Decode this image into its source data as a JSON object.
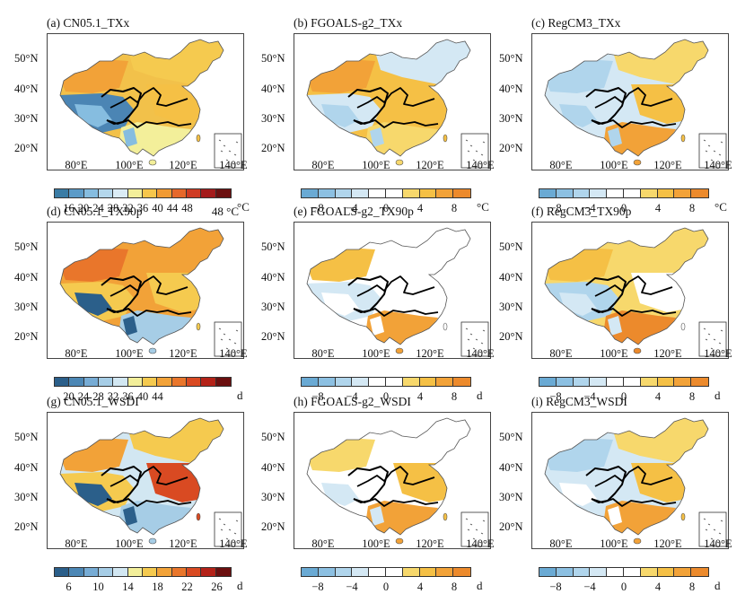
{
  "longitude_ticks": [
    "80°E",
    "100°E",
    "120°E",
    "140°E"
  ],
  "latitude_ticks": [
    "50°N",
    "40°N",
    "30°N",
    "20°N"
  ],
  "extra_label": "48 °C",
  "colorbars": {
    "abs_txx": {
      "colors": [
        "#3a7ca5",
        "#5b9bc8",
        "#86bde0",
        "#b4d7ec",
        "#dbecf5",
        "#f3ef9a",
        "#f6c64c",
        "#f19a33",
        "#e6682b",
        "#cf3b23",
        "#a41b1b",
        "#6b0f0f"
      ],
      "labels": [
        "16",
        "20",
        "24",
        "28",
        "32",
        "36",
        "40",
        "44",
        "48"
      ],
      "unit": "°C"
    },
    "abs_tx90p": {
      "colors": [
        "#2b5f8a",
        "#4c87b5",
        "#77acd5",
        "#a6cde6",
        "#d2e7f2",
        "#f3ef9a",
        "#f5ca4f",
        "#f2a238",
        "#e9762b",
        "#d94a22",
        "#b42218",
        "#6b0f0f"
      ],
      "labels": [
        "20",
        "24",
        "28",
        "32",
        "36",
        "40",
        "44"
      ],
      "unit": "d"
    },
    "abs_wsdi": {
      "colors": [
        "#2b5f8a",
        "#4c87b5",
        "#77acd5",
        "#a6cde6",
        "#d2e7f2",
        "#f3ef9a",
        "#f5ca4f",
        "#f2a238",
        "#e9762b",
        "#d94a22",
        "#b42218",
        "#6b0f0f"
      ],
      "labels": [
        "6",
        "10",
        "14",
        "18",
        "22",
        "26"
      ],
      "unit": "d"
    },
    "diff_c": {
      "colors": [
        "#6aaad4",
        "#8cc0e2",
        "#b0d5ec",
        "#d4e8f4",
        "#ffffff",
        "#ffffff",
        "#f7d86c",
        "#f5c045",
        "#f2a238",
        "#ec8a2c"
      ],
      "labels": [
        "−8",
        "−4",
        "0",
        "4",
        "8"
      ],
      "unit": "°C"
    },
    "diff_d": {
      "colors": [
        "#6aaad4",
        "#8cc0e2",
        "#b0d5ec",
        "#d4e8f4",
        "#ffffff",
        "#ffffff",
        "#f7d86c",
        "#f5c045",
        "#f2a238",
        "#ec8a2c"
      ],
      "labels": [
        "−8",
        "−4",
        "0",
        "4",
        "8"
      ],
      "unit": "d"
    }
  },
  "panels": [
    {
      "title": "(a)  CN05.1_TXx",
      "cbar": "abs_txx",
      "palette": {
        "base": "#f2c14a",
        "west": "#f2a238",
        "tibet": "#4b85b4",
        "tibet2": "#86bde0",
        "east": "#f5c045",
        "south": "#f3ef9a",
        "north": "#f5ca4f"
      }
    },
    {
      "title": "(b)  FGOALS-g2_TXx",
      "cbar": "diff_c",
      "palette": {
        "base": "#f5c045",
        "west": "#f2a238",
        "tibet": "#d4e8f4",
        "tibet2": "#b0d5ec",
        "east": "#f5c045",
        "south": "#f7d86c",
        "north": "#d4e8f4"
      }
    },
    {
      "title": "(c)  RegCM3_TXx",
      "cbar": "diff_c",
      "palette": {
        "base": "#d4e8f4",
        "west": "#b0d5ec",
        "tibet": "#d4e8f4",
        "tibet2": "#b0d5ec",
        "east": "#f5c045",
        "south": "#f2a238",
        "north": "#f7d86c"
      }
    },
    {
      "title": "(d)  CN05.1_TX90p",
      "cbar": "abs_tx90p",
      "palette": {
        "base": "#f2a238",
        "west": "#e9762b",
        "tibet": "#f5ca4f",
        "tibet2": "#2b5f8a",
        "east": "#f5ca4f",
        "south": "#a6cde6",
        "north": "#f2a238"
      }
    },
    {
      "title": "(e)  FGOALS-g2_TX90p",
      "cbar": "diff_d",
      "palette": {
        "base": "#ffffff",
        "west": "#f5c045",
        "tibet": "#d4e8f4",
        "tibet2": "#ffffff",
        "east": "#ffffff",
        "south": "#f2a238",
        "north": "#ffffff"
      }
    },
    {
      "title": "(f)  RegCM3_TX90p",
      "cbar": "diff_d",
      "palette": {
        "base": "#f7d86c",
        "west": "#f5c045",
        "tibet": "#b0d5ec",
        "tibet2": "#d4e8f4",
        "east": "#ffffff",
        "south": "#ec8a2c",
        "north": "#f7d86c"
      }
    },
    {
      "title": "(g)  CN05.1_WSDI",
      "cbar": "abs_wsdi",
      "palette": {
        "base": "#d2e7f2",
        "west": "#f2a238",
        "tibet": "#f5ca4f",
        "tibet2": "#2b5f8a",
        "east": "#d94a22",
        "south": "#a6cde6",
        "north": "#f5ca4f"
      }
    },
    {
      "title": "(h)  FGOALS-g2_WSDI",
      "cbar": "diff_d",
      "palette": {
        "base": "#ffffff",
        "west": "#f7d86c",
        "tibet": "#ffffff",
        "tibet2": "#d4e8f4",
        "east": "#f5c045",
        "south": "#f2a238",
        "north": "#ffffff"
      }
    },
    {
      "title": "(i)  RegCM3_WSDI",
      "cbar": "diff_d",
      "palette": {
        "base": "#d4e8f4",
        "west": "#b0d5ec",
        "tibet": "#d4e8f4",
        "tibet2": "#ffffff",
        "east": "#f5c045",
        "south": "#f2a238",
        "north": "#f7d86c"
      }
    }
  ]
}
